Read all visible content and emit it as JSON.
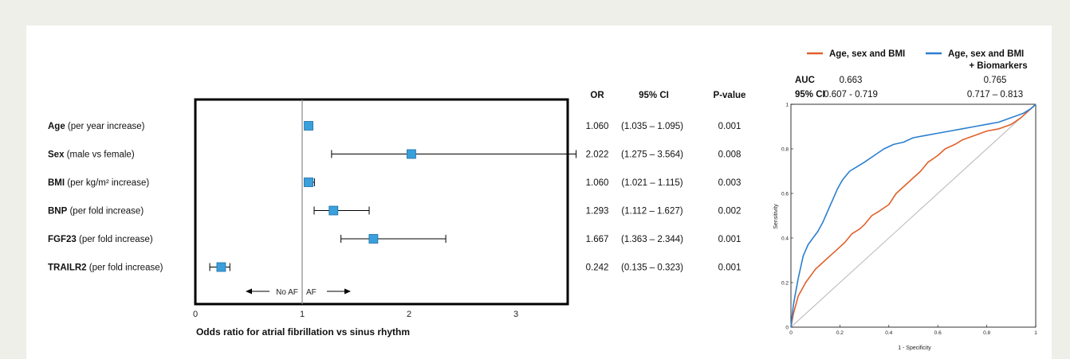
{
  "chart_data": [
    {
      "type": "forest",
      "xlabel": "Odds ratio for atrial fibrillation vs sinus rhythm",
      "xlim": [
        0,
        3.5
      ],
      "xticks": [
        "0",
        "1",
        "2",
        "3"
      ],
      "reference_line": 1,
      "direction_labels": {
        "left": "No AF",
        "right": "AF"
      },
      "column_headers": {
        "or": "OR",
        "ci": "95% CI",
        "p": "P-value"
      },
      "rows": [
        {
          "name": "Age",
          "detail": "(per year increase)",
          "or": 1.06,
          "lo": 1.035,
          "hi": 1.095,
          "or_text": "1.060",
          "ci_text": "(1.035 – 1.095)",
          "p_text": "0.001"
        },
        {
          "name": "Sex",
          "detail": "(male vs female)",
          "or": 2.022,
          "lo": 1.275,
          "hi": 3.564,
          "or_text": "2.022",
          "ci_text": "(1.275 – 3.564)",
          "p_text": "0.008"
        },
        {
          "name": "BMI",
          "detail": "(per kg/m² increase)",
          "or": 1.06,
          "lo": 1.021,
          "hi": 1.115,
          "or_text": "1.060",
          "ci_text": "(1.021 – 1.115)",
          "p_text": "0.003"
        },
        {
          "name": "BNP",
          "detail": "(per fold increase)",
          "or": 1.293,
          "lo": 1.112,
          "hi": 1.627,
          "or_text": "1.293",
          "ci_text": "(1.112 – 1.627)",
          "p_text": "0.002"
        },
        {
          "name": "FGF23",
          "detail": "(per fold increase)",
          "or": 1.667,
          "lo": 1.363,
          "hi": 2.344,
          "or_text": "1.667",
          "ci_text": "(1.363 – 2.344)",
          "p_text": "0.001"
        },
        {
          "name": "TRAILR2",
          "detail": "(per fold increase)",
          "or": 0.242,
          "lo": 0.135,
          "hi": 0.323,
          "or_text": "0.242",
          "ci_text": "(0.135 – 0.323)",
          "p_text": "0.001"
        }
      ],
      "colors": {
        "marker": "#3aa0dc",
        "marker_edge": "#1d6fa5",
        "frame": "#000000",
        "ref_line": "#888888"
      }
    },
    {
      "type": "line",
      "xlabel": "1 - Specificity",
      "ylabel": "Sensitivity",
      "xlim": [
        0,
        1
      ],
      "ylim": [
        0,
        1
      ],
      "xticks": [
        "0",
        "0.2",
        "0.4",
        "0.6",
        "0.8",
        "1"
      ],
      "yticks": [
        "0",
        "0.2",
        "0.4",
        "0.6",
        "0.8",
        "1"
      ],
      "legend_position": "top",
      "stats_labels": {
        "auc": "AUC",
        "ci": "95% CI"
      },
      "series": [
        {
          "name": "Age, sex and BMI",
          "color": "#e0602a",
          "auc_text": "0.663",
          "ci_text": "0.607 - 0.719",
          "x": [
            0,
            0.005,
            0.01,
            0.02,
            0.03,
            0.05,
            0.06,
            0.08,
            0.1,
            0.12,
            0.15,
            0.18,
            0.2,
            0.22,
            0.25,
            0.28,
            0.3,
            0.33,
            0.36,
            0.4,
            0.43,
            0.46,
            0.5,
            0.53,
            0.56,
            0.6,
            0.63,
            0.67,
            0.7,
            0.75,
            0.8,
            0.85,
            0.9,
            0.94,
            0.97,
            1
          ],
          "y": [
            0,
            0.03,
            0.06,
            0.1,
            0.14,
            0.18,
            0.2,
            0.23,
            0.26,
            0.28,
            0.31,
            0.34,
            0.36,
            0.38,
            0.42,
            0.44,
            0.46,
            0.5,
            0.52,
            0.55,
            0.6,
            0.63,
            0.67,
            0.7,
            0.74,
            0.77,
            0.8,
            0.82,
            0.84,
            0.86,
            0.88,
            0.89,
            0.91,
            0.94,
            0.97,
            1
          ]
        },
        {
          "name": "Age, sex and BMI + Biomarkers",
          "color": "#2a7fd0",
          "auc_text": "0.765",
          "ci_text": "0.717 – 0.813",
          "x": [
            0,
            0.005,
            0.01,
            0.02,
            0.03,
            0.04,
            0.05,
            0.07,
            0.09,
            0.11,
            0.13,
            0.15,
            0.17,
            0.19,
            0.21,
            0.24,
            0.27,
            0.3,
            0.34,
            0.38,
            0.42,
            0.46,
            0.5,
            0.55,
            0.6,
            0.65,
            0.7,
            0.75,
            0.8,
            0.85,
            0.9,
            0.95,
            0.98,
            1
          ],
          "y": [
            0,
            0.05,
            0.1,
            0.16,
            0.22,
            0.27,
            0.32,
            0.37,
            0.4,
            0.43,
            0.47,
            0.52,
            0.57,
            0.62,
            0.66,
            0.7,
            0.72,
            0.74,
            0.77,
            0.8,
            0.82,
            0.83,
            0.85,
            0.86,
            0.87,
            0.88,
            0.89,
            0.9,
            0.91,
            0.92,
            0.94,
            0.96,
            0.98,
            1
          ]
        }
      ]
    }
  ]
}
